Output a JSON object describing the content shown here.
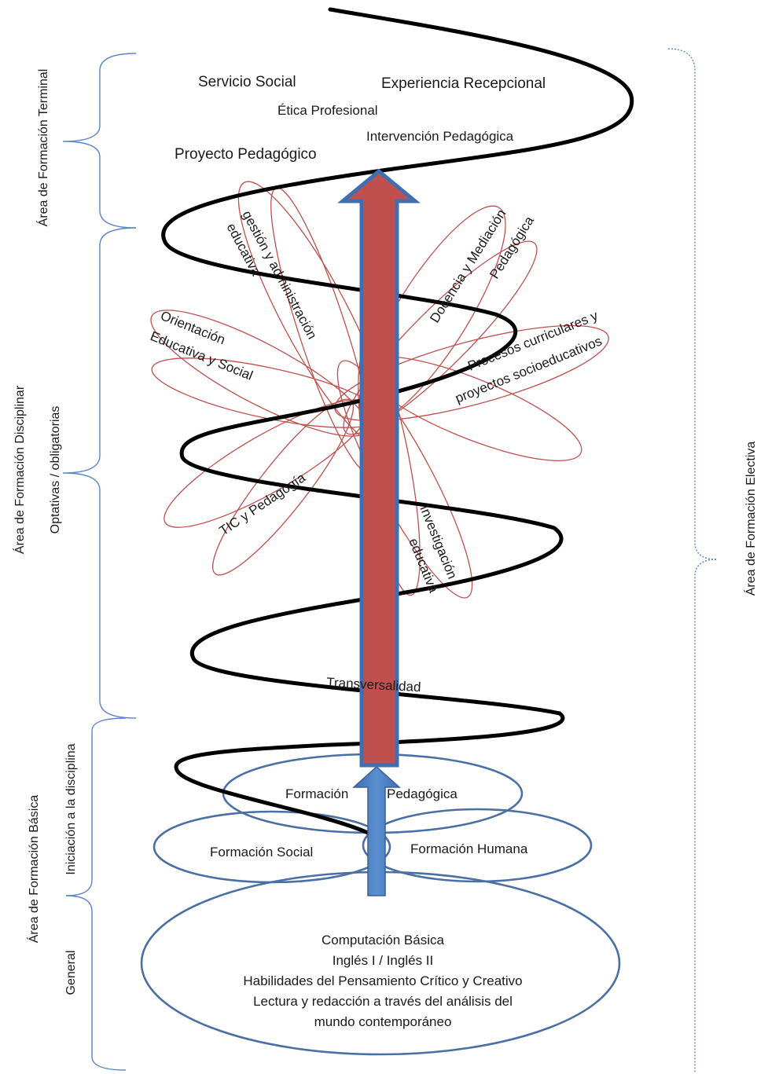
{
  "colors": {
    "spiral": "#000000",
    "petals": "#c0504d",
    "red_arrow": "#c0504d",
    "blue_arrow": "#4a7ebb",
    "base_ellipses": "#4a6fa5",
    "brackets": "#5b86c5"
  },
  "left_brackets": {
    "terminal": "Área de Formación Terminal",
    "disciplinar": "Área de Formación Disciplinar",
    "disciplinar_sub": "Optativas / obligatorias",
    "basica": "Área de Formación Básica",
    "iniciacion": "Iniciación a la disciplina",
    "general": "General"
  },
  "right_bracket": {
    "electiva": "Área de Formación Electiva"
  },
  "terminal_courses": {
    "servicio_social": "Servicio Social",
    "experiencia_recepcional": "Experiencia Recepcional",
    "etica_profesional": "Ética Profesional",
    "intervencion_pedagogica": "Intervención Pedagógica",
    "proyecto_pedagogico": "Proyecto Pedagógico"
  },
  "disciplinar_petals": {
    "gestion_line1": "gestión y administración",
    "gestion_line2": "educativa",
    "docencia_line1": "Docencia y Mediación",
    "docencia_line2": "Pedagógica",
    "orientacion_line1": "Orientación",
    "orientacion_line2": "Educativa y Social",
    "procesos_line1": "Procesos curriculares y",
    "procesos_line2": "proyectos socioeducativos",
    "tic": "TIC y Pedagogía",
    "investigacion_line1": "Investigación",
    "investigacion_line2": "educativa"
  },
  "transversalidad": "Transversalidad",
  "basic_ellipses": {
    "formacion_word": "Formación",
    "pedagogica_word": "Pedagógica",
    "formacion_social": "Formación Social",
    "formacion_humana": "Formación Humana"
  },
  "general_courses": {
    "line1": "Computación Básica",
    "line2": "Inglés I / Inglés II",
    "line3": "Habilidades del Pensamiento Crítico y Creativo",
    "line4": "Lectura y redacción a través del análisis del",
    "line5": "mundo contemporáneo"
  }
}
